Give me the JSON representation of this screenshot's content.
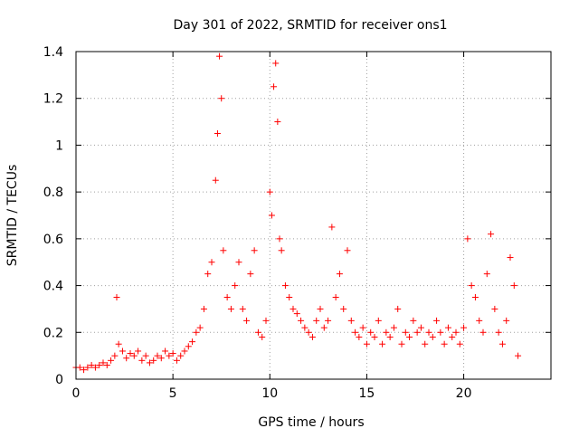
{
  "chart_data": {
    "type": "scatter",
    "title": "Day 301 of 2022, SRMTID for receiver ons1",
    "xlabel": "GPS time / hours",
    "ylabel": "SRMTID / TECUs",
    "xlim": [
      0,
      24.5
    ],
    "ylim": [
      0,
      1.4
    ],
    "xticks": [
      0,
      5,
      10,
      15,
      20
    ],
    "xtick_labels": [
      "0",
      "5",
      "10",
      "15",
      "20"
    ],
    "yticks": [
      0,
      0.2,
      0.4,
      0.6,
      0.8,
      1.0,
      1.2,
      1.4
    ],
    "ytick_labels": [
      "0",
      "0.2",
      "0.4",
      "0.6",
      "0.8",
      "1",
      "1.2",
      "1.4"
    ],
    "grid": true,
    "marker": "+",
    "color": "#ff0000",
    "series": [
      {
        "name": "SRMTID",
        "x": [
          0.0,
          0.2,
          0.4,
          0.6,
          0.8,
          1.0,
          1.2,
          1.4,
          1.6,
          1.8,
          2.0,
          2.1,
          2.2,
          2.4,
          2.6,
          2.8,
          3.0,
          3.2,
          3.4,
          3.6,
          3.8,
          4.0,
          4.2,
          4.4,
          4.6,
          4.8,
          5.0,
          5.2,
          5.4,
          5.6,
          5.8,
          6.0,
          6.2,
          6.4,
          6.6,
          6.8,
          7.0,
          7.2,
          7.3,
          7.4,
          7.5,
          7.6,
          7.8,
          8.0,
          8.2,
          8.4,
          8.6,
          8.8,
          9.0,
          9.2,
          9.4,
          9.6,
          9.8,
          10.0,
          10.1,
          10.2,
          10.3,
          10.4,
          10.5,
          10.6,
          10.8,
          11.0,
          11.2,
          11.4,
          11.6,
          11.8,
          12.0,
          12.2,
          12.4,
          12.6,
          12.8,
          13.0,
          13.2,
          13.4,
          13.6,
          13.8,
          14.0,
          14.2,
          14.4,
          14.6,
          14.8,
          15.0,
          15.2,
          15.4,
          15.6,
          15.8,
          16.0,
          16.2,
          16.4,
          16.6,
          16.8,
          17.0,
          17.2,
          17.4,
          17.6,
          17.8,
          18.0,
          18.2,
          18.4,
          18.6,
          18.8,
          19.0,
          19.2,
          19.4,
          19.6,
          19.8,
          20.0,
          20.2,
          20.4,
          20.6,
          20.8,
          21.0,
          21.2,
          21.4,
          21.6,
          21.8,
          22.0,
          22.2,
          22.4,
          22.6,
          22.8
        ],
        "values": [
          0.05,
          0.05,
          0.04,
          0.05,
          0.06,
          0.05,
          0.06,
          0.07,
          0.06,
          0.08,
          0.1,
          0.35,
          0.15,
          0.12,
          0.09,
          0.11,
          0.1,
          0.12,
          0.08,
          0.1,
          0.07,
          0.08,
          0.1,
          0.09,
          0.12,
          0.1,
          0.11,
          0.08,
          0.1,
          0.12,
          0.14,
          0.16,
          0.2,
          0.22,
          0.3,
          0.45,
          0.5,
          0.85,
          1.05,
          1.38,
          1.2,
          0.55,
          0.35,
          0.3,
          0.4,
          0.5,
          0.3,
          0.25,
          0.45,
          0.55,
          0.2,
          0.18,
          0.25,
          0.8,
          0.7,
          1.25,
          1.35,
          1.1,
          0.6,
          0.55,
          0.4,
          0.35,
          0.3,
          0.28,
          0.25,
          0.22,
          0.2,
          0.18,
          0.25,
          0.3,
          0.22,
          0.25,
          0.65,
          0.35,
          0.45,
          0.3,
          0.55,
          0.25,
          0.2,
          0.18,
          0.22,
          0.15,
          0.2,
          0.18,
          0.25,
          0.15,
          0.2,
          0.18,
          0.22,
          0.3,
          0.15,
          0.2,
          0.18,
          0.25,
          0.2,
          0.22,
          0.15,
          0.2,
          0.18,
          0.25,
          0.2,
          0.15,
          0.22,
          0.18,
          0.2,
          0.15,
          0.22,
          0.6,
          0.4,
          0.35,
          0.25,
          0.2,
          0.45,
          0.62,
          0.3,
          0.2,
          0.15,
          0.25,
          0.52,
          0.4,
          0.1
        ]
      }
    ]
  }
}
